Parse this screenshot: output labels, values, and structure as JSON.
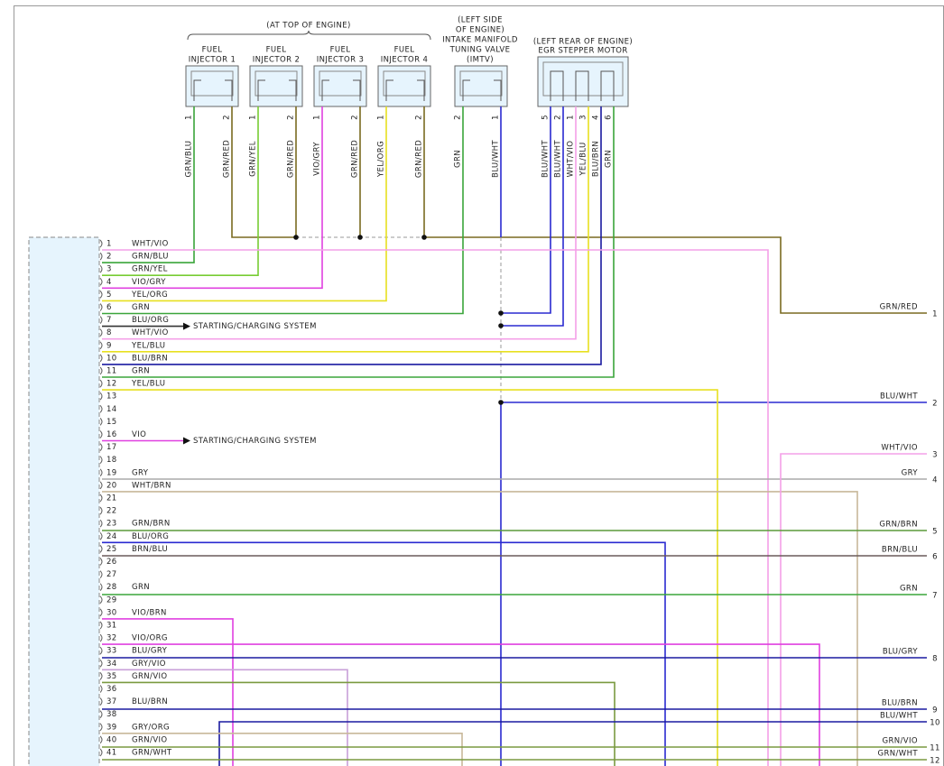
{
  "top_label": "(AT TOP OF ENGINE)",
  "components": [
    {
      "label_lines": [
        "FUEL",
        "INJECTOR 1"
      ],
      "pins": [
        "1",
        "2"
      ],
      "wires": [
        "GRN/BLU",
        "GRN/RED"
      ]
    },
    {
      "label_lines": [
        "FUEL",
        "INJECTOR 2"
      ],
      "pins": [
        "1",
        "2"
      ],
      "wires": [
        "GRN/YEL",
        "GRN/RED"
      ]
    },
    {
      "label_lines": [
        "FUEL",
        "INJECTOR 3"
      ],
      "pins": [
        "1",
        "2"
      ],
      "wires": [
        "VIO/GRY",
        "GRN/RED"
      ]
    },
    {
      "label_lines": [
        "FUEL",
        "INJECTOR 4"
      ],
      "pins": [
        "1",
        "2"
      ],
      "wires": [
        "YEL/ORG",
        "GRN/RED"
      ]
    },
    {
      "label_lines": [
        "(LEFT SIDE",
        "OF ENGINE)",
        "INTAKE MANIFOLD",
        "TUNING VALVE",
        "(IMTV)"
      ],
      "pins": [
        "2",
        "1"
      ],
      "wires": [
        "GRN",
        "BLU/WHT"
      ]
    },
    {
      "label_lines": [
        "(LEFT REAR OF ENGINE)",
        "EGR STEPPER MOTOR"
      ],
      "pins": [
        "5",
        "2",
        "1",
        "3",
        "4",
        "6"
      ],
      "wires": [
        "BLU/WHT",
        "BLU/WHT",
        "WHT/VIO",
        "YEL/BLU",
        "BLU/BRN",
        "GRN"
      ]
    }
  ],
  "connector_pins": [
    {
      "pin": "1",
      "wire": "WHT/VIO"
    },
    {
      "pin": "2",
      "wire": "GRN/BLU"
    },
    {
      "pin": "3",
      "wire": "GRN/YEL"
    },
    {
      "pin": "4",
      "wire": "VIO/GRY"
    },
    {
      "pin": "5",
      "wire": "YEL/ORG"
    },
    {
      "pin": "6",
      "wire": "GRN"
    },
    {
      "pin": "7",
      "wire": "BLU/ORG"
    },
    {
      "pin": "8",
      "wire": "WHT/VIO"
    },
    {
      "pin": "9",
      "wire": "YEL/BLU"
    },
    {
      "pin": "10",
      "wire": "BLU/BRN"
    },
    {
      "pin": "11",
      "wire": "GRN"
    },
    {
      "pin": "12",
      "wire": "YEL/BLU"
    },
    {
      "pin": "13"
    },
    {
      "pin": "14"
    },
    {
      "pin": "15"
    },
    {
      "pin": "16",
      "wire": "VIO"
    },
    {
      "pin": "17"
    },
    {
      "pin": "18"
    },
    {
      "pin": "19",
      "wire": "GRY"
    },
    {
      "pin": "20",
      "wire": "WHT/BRN"
    },
    {
      "pin": "21"
    },
    {
      "pin": "22"
    },
    {
      "pin": "23",
      "wire": "GRN/BRN"
    },
    {
      "pin": "24",
      "wire": "BLU/ORG"
    },
    {
      "pin": "25",
      "wire": "BRN/BLU"
    },
    {
      "pin": "26"
    },
    {
      "pin": "27"
    },
    {
      "pin": "28",
      "wire": "GRN"
    },
    {
      "pin": "29"
    },
    {
      "pin": "30",
      "wire": "VIO/BRN"
    },
    {
      "pin": "31"
    },
    {
      "pin": "32",
      "wire": "VIO/ORG"
    },
    {
      "pin": "33",
      "wire": "BLU/GRY"
    },
    {
      "pin": "34",
      "wire": "GRY/VIO"
    },
    {
      "pin": "35",
      "wire": "GRN/VIO"
    },
    {
      "pin": "36"
    },
    {
      "pin": "37",
      "wire": "BLU/BRN"
    },
    {
      "pin": "38"
    },
    {
      "pin": "39",
      "wire": "GRY/ORG"
    },
    {
      "pin": "40",
      "wire": "GRN/VIO"
    },
    {
      "pin": "41",
      "wire": "GRN/WHT"
    }
  ],
  "branches": [
    {
      "pin_index": 6,
      "label": "STARTING/CHARGING SYSTEM"
    },
    {
      "pin_index": 15,
      "label": "STARTING/CHARGING SYSTEM"
    }
  ],
  "outputs": [
    {
      "wire": "GRN/RED",
      "pin": "1"
    },
    {
      "wire": "BLU/WHT",
      "pin": "2"
    },
    {
      "wire": "WHT/VIO",
      "pin": "3"
    },
    {
      "wire": "GRY",
      "pin": "4"
    },
    {
      "wire": "GRN/BRN",
      "pin": "5"
    },
    {
      "wire": "BRN/BLU",
      "pin": "6"
    },
    {
      "wire": "GRN",
      "pin": "7"
    },
    {
      "wire": "BLU/GRY",
      "pin": "8"
    },
    {
      "wire": "BLU/BRN",
      "pin": "9"
    },
    {
      "wire": "BLU/WHT",
      "pin": "10"
    },
    {
      "wire": "GRN/VIO",
      "pin": "11"
    },
    {
      "wire": "GRN/WHT",
      "pin": "12"
    }
  ]
}
